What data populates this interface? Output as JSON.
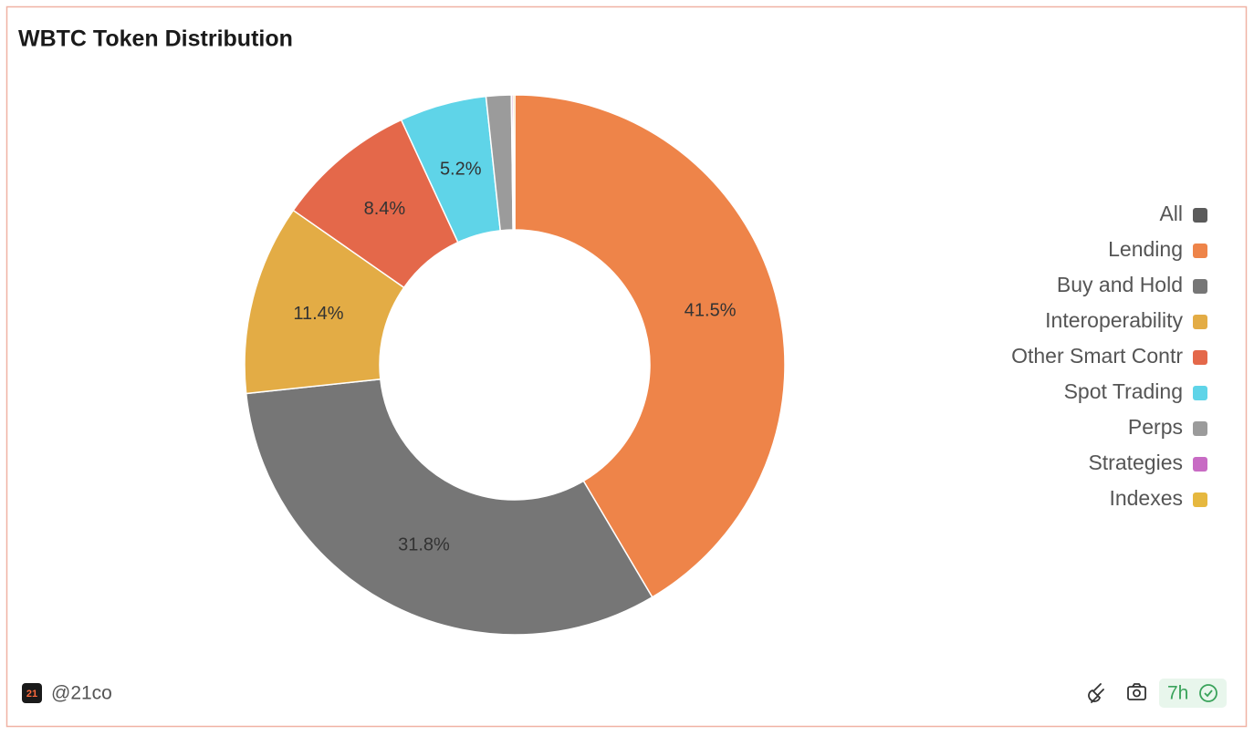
{
  "chart_data": {
    "type": "pie",
    "title": "WBTC Token Distribution",
    "categories": [
      "All",
      "Lending",
      "Buy and Hold",
      "Interoperability",
      "Other Smart Contr",
      "Spot Trading",
      "Perps",
      "Strategies",
      "Indexes"
    ],
    "values": [
      0,
      41.5,
      31.8,
      11.4,
      8.4,
      5.2,
      1.5,
      0.1,
      0.1
    ],
    "value_labels": [
      null,
      "41.5%",
      "31.8%",
      "11.4%",
      "8.4%",
      "5.2%",
      null,
      null,
      null
    ],
    "colors": [
      "#5b5b5b",
      "#ee8449",
      "#767676",
      "#e3ac45",
      "#e4684a",
      "#5fd4e8",
      "#9b9b9b",
      "#c86bc4",
      "#e6b83f"
    ],
    "legend": "right"
  },
  "footer": {
    "logo": "21",
    "handle": "@21co",
    "age": "7h"
  }
}
